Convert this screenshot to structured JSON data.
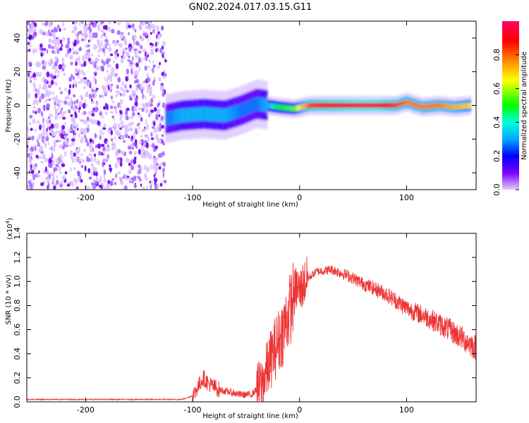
{
  "title": "GN02.2024.017.03.15.G11",
  "chart_data": [
    {
      "type": "heatmap",
      "xlabel": "Height of straight line (km)",
      "ylabel": "Frequency (Hz)",
      "xlim": [
        -255,
        165
      ],
      "ylim": [
        -50,
        50
      ],
      "xticks": [
        -200,
        -100,
        0,
        100
      ],
      "yticks": [
        -40,
        -20,
        0,
        20,
        40
      ],
      "colorbar": {
        "label": "Normalized spectral amplitude",
        "range": [
          0,
          1
        ],
        "ticks": [
          0.0,
          0.2,
          0.4,
          0.6,
          0.8
        ],
        "colormap": [
          "#e4c8ff",
          "#7a00ff",
          "#0000ff",
          "#00aaff",
          "#00ffdd",
          "#00ff00",
          "#ffff00",
          "#ff9900",
          "#ff0000",
          "#ff0066"
        ]
      },
      "noise_region": {
        "x": [
          -255,
          -125
        ],
        "y": [
          -50,
          50
        ],
        "amplitude": 0.1
      },
      "signal_ridge": [
        {
          "x": -125,
          "y": -8,
          "amplitude": 0.3
        },
        {
          "x": -110,
          "y": -6,
          "amplitude": 0.35
        },
        {
          "x": -90,
          "y": -5,
          "amplitude": 0.35
        },
        {
          "x": -70,
          "y": -6,
          "amplitude": 0.35
        },
        {
          "x": -55,
          "y": -3,
          "amplitude": 0.3
        },
        {
          "x": -40,
          "y": 1,
          "amplitude": 0.3
        },
        {
          "x": -30,
          "y": 0,
          "amplitude": 0.35
        },
        {
          "x": -20,
          "y": -1,
          "amplitude": 0.55
        },
        {
          "x": -5,
          "y": -2,
          "amplitude": 0.6
        },
        {
          "x": 10,
          "y": 0,
          "amplitude": 0.85
        },
        {
          "x": 30,
          "y": 0,
          "amplitude": 0.9
        },
        {
          "x": 50,
          "y": 0,
          "amplitude": 0.95
        },
        {
          "x": 70,
          "y": 0,
          "amplitude": 0.95
        },
        {
          "x": 90,
          "y": 0,
          "amplitude": 0.85
        },
        {
          "x": 100,
          "y": 2,
          "amplitude": 0.8
        },
        {
          "x": 115,
          "y": -1,
          "amplitude": 0.8
        },
        {
          "x": 130,
          "y": 0,
          "amplitude": 0.8
        },
        {
          "x": 145,
          "y": -1,
          "amplitude": 0.75
        },
        {
          "x": 160,
          "y": 0,
          "amplitude": 0.7
        }
      ]
    },
    {
      "type": "line",
      "xlabel": "Height of straight line (km)",
      "ylabel": "SNR (10 * v/v)",
      "multiplier_label": "(x10",
      "multiplier_exponent": "4",
      "xlim": [
        -255,
        165
      ],
      "ylim": [
        0,
        1.4
      ],
      "xticks": [
        -200,
        -100,
        0,
        100
      ],
      "yticks": [
        "0.0",
        "0.2",
        "0.4",
        "0.6",
        "0.8",
        "1.0",
        "1.2",
        "1.4"
      ],
      "color": "#ee3333",
      "x": [
        -255,
        -200,
        -150,
        -110,
        -100,
        -90,
        -85,
        -75,
        -65,
        -55,
        -45,
        -35,
        -25,
        -15,
        -8,
        -3,
        0,
        5,
        15,
        30,
        45,
        60,
        80,
        100,
        120,
        140,
        165
      ],
      "y": [
        0.02,
        0.02,
        0.02,
        0.02,
        0.05,
        0.2,
        0.15,
        0.1,
        0.08,
        0.06,
        0.06,
        0.15,
        0.4,
        0.6,
        0.8,
        0.95,
        0.92,
        1.0,
        1.08,
        1.1,
        1.05,
        0.98,
        0.9,
        0.78,
        0.7,
        0.6,
        0.45
      ]
    }
  ]
}
